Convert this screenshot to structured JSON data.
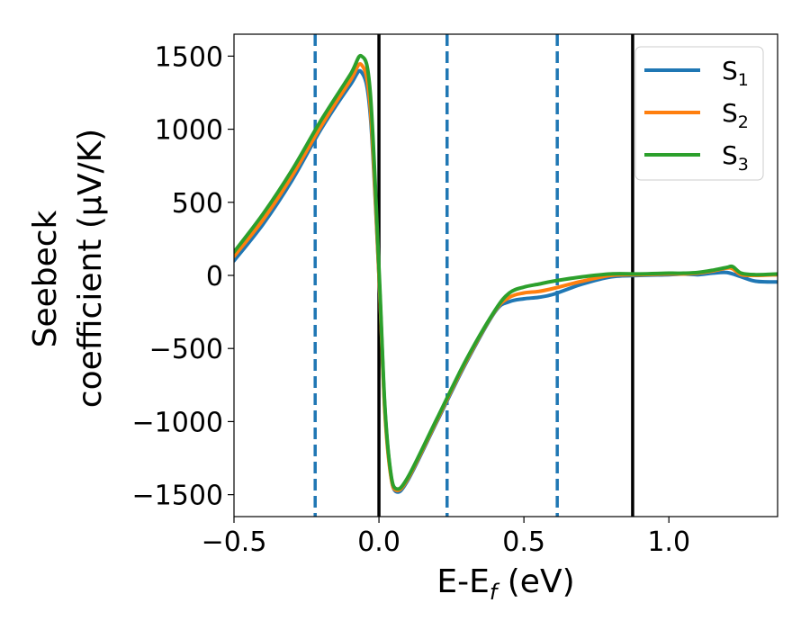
{
  "chart_data": {
    "type": "line",
    "title": "",
    "xlabel": "E-E_f (eV)",
    "xlabel_parts": {
      "main": "E-E",
      "sub": "f",
      "tail": " (eV)"
    },
    "ylabel_line1": "Seebeck",
    "ylabel_line2": "coefficient  (μV/K)",
    "xlim": [
      -0.5,
      1.375
    ],
    "ylim": [
      -1650,
      1650
    ],
    "xticks": [
      -0.5,
      0.0,
      0.5,
      1.0
    ],
    "xtick_labels": [
      "−0.5",
      "0.0",
      "0.5",
      "1.0"
    ],
    "yticks": [
      1500,
      1000,
      500,
      0,
      -500,
      -1000,
      -1500
    ],
    "ytick_labels": [
      "1500",
      "1000",
      "500",
      "0",
      "−500",
      "−1000",
      "−1500"
    ],
    "grid": false,
    "legend_position": "top-right",
    "vlines": [
      {
        "x": -0.22,
        "style": "dashed",
        "color": "#1f77b4"
      },
      {
        "x": 0.0,
        "style": "solid",
        "color": "#000000"
      },
      {
        "x": 0.235,
        "style": "dashed",
        "color": "#1f77b4"
      },
      {
        "x": 0.615,
        "style": "dashed",
        "color": "#1f77b4"
      },
      {
        "x": 0.875,
        "style": "solid",
        "color": "#000000"
      }
    ],
    "series": [
      {
        "name": "S1",
        "label_main": "S",
        "label_sub": "1",
        "color": "#1f77b4",
        "x": [
          -0.5,
          -0.4,
          -0.3,
          -0.2,
          -0.1,
          -0.06,
          -0.03,
          0.0,
          0.02,
          0.04,
          0.06,
          0.1,
          0.2,
          0.3,
          0.4,
          0.45,
          0.5,
          0.55,
          0.6,
          0.7,
          0.8,
          0.9,
          1.0,
          1.05,
          1.1,
          1.15,
          1.2,
          1.25,
          1.3,
          1.375
        ],
        "y": [
          100,
          350,
          650,
          1000,
          1300,
          1390,
          1100,
          0,
          -900,
          -1350,
          -1480,
          -1400,
          -1000,
          -600,
          -250,
          -180,
          -160,
          -150,
          -130,
          -60,
          -10,
          0,
          5,
          10,
          5,
          15,
          20,
          -10,
          -40,
          -45
        ]
      },
      {
        "name": "S2",
        "label_main": "S",
        "label_sub": "2",
        "color": "#ff7f0e",
        "x": [
          -0.5,
          -0.4,
          -0.3,
          -0.2,
          -0.1,
          -0.06,
          -0.03,
          0.0,
          0.02,
          0.04,
          0.06,
          0.1,
          0.2,
          0.3,
          0.4,
          0.45,
          0.5,
          0.55,
          0.6,
          0.7,
          0.8,
          0.9,
          1.0,
          1.05,
          1.1,
          1.15,
          1.2,
          1.22,
          1.25,
          1.3,
          1.375
        ],
        "y": [
          130,
          380,
          680,
          1020,
          1330,
          1440,
          1150,
          0,
          -920,
          -1360,
          -1470,
          -1390,
          -990,
          -590,
          -245,
          -150,
          -120,
          -110,
          -90,
          -40,
          0,
          5,
          10,
          10,
          15,
          30,
          50,
          45,
          5,
          0,
          5
        ]
      },
      {
        "name": "S3",
        "label_main": "S",
        "label_sub": "3",
        "color": "#2ca02c",
        "x": [
          -0.5,
          -0.4,
          -0.3,
          -0.2,
          -0.1,
          -0.06,
          -0.03,
          0.0,
          0.02,
          0.04,
          0.06,
          0.1,
          0.2,
          0.3,
          0.4,
          0.45,
          0.5,
          0.55,
          0.6,
          0.7,
          0.8,
          0.9,
          1.0,
          1.05,
          1.1,
          1.15,
          1.2,
          1.22,
          1.25,
          1.3,
          1.375
        ],
        "y": [
          160,
          420,
          720,
          1060,
          1370,
          1500,
          1250,
          50,
          -880,
          -1340,
          -1460,
          -1380,
          -980,
          -580,
          -240,
          -120,
          -80,
          -60,
          -40,
          -10,
          10,
          10,
          15,
          15,
          20,
          35,
          55,
          60,
          15,
          5,
          10
        ]
      }
    ]
  }
}
